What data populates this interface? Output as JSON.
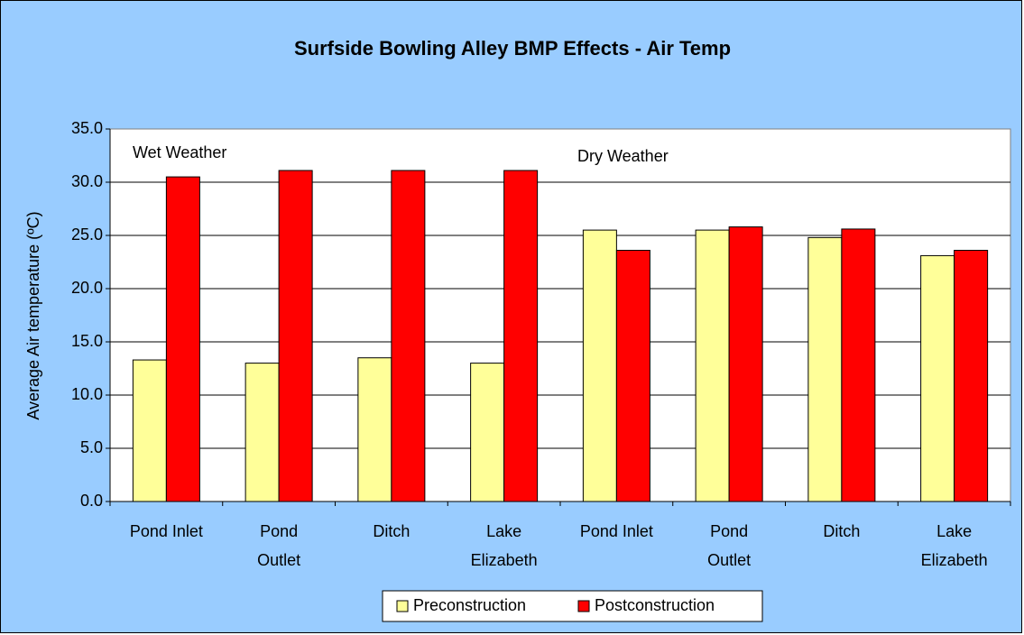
{
  "chart_data": {
    "type": "bar",
    "title": "Surfside Bowling Alley BMP Effects - Air Temp",
    "y_label": "Average Air temperature (ºC)",
    "annotations": [
      "Wet Weather",
      "Dry Weather"
    ],
    "categories": [
      "Pond Inlet",
      "Pond\nOutlet",
      "Ditch",
      "Lake\nElizabeth",
      "Pond Inlet",
      "Pond\nOutlet",
      "Ditch",
      "Lake\nElizabeth"
    ],
    "series": [
      {
        "name": "Preconstruction",
        "color": "#ffff99",
        "values": [
          13.3,
          13.0,
          13.5,
          13.0,
          25.5,
          25.5,
          24.8,
          23.1
        ]
      },
      {
        "name": "Postconstruction",
        "color": "#ff0000",
        "values": [
          30.5,
          31.1,
          31.1,
          31.1,
          23.6,
          25.8,
          25.6,
          23.6
        ]
      }
    ],
    "ylim": [
      0,
      35
    ],
    "yticks": [
      {
        "value": 0,
        "label": "0.0"
      },
      {
        "value": 5,
        "label": "5.0"
      },
      {
        "value": 10,
        "label": "10.0"
      },
      {
        "value": 15,
        "label": "15.0"
      },
      {
        "value": 20,
        "label": "20.0"
      },
      {
        "value": 25,
        "label": "25.0"
      },
      {
        "value": 30,
        "label": "30.0"
      },
      {
        "value": 35,
        "label": "35.0"
      }
    ],
    "grid": true,
    "legend": "bottom"
  }
}
